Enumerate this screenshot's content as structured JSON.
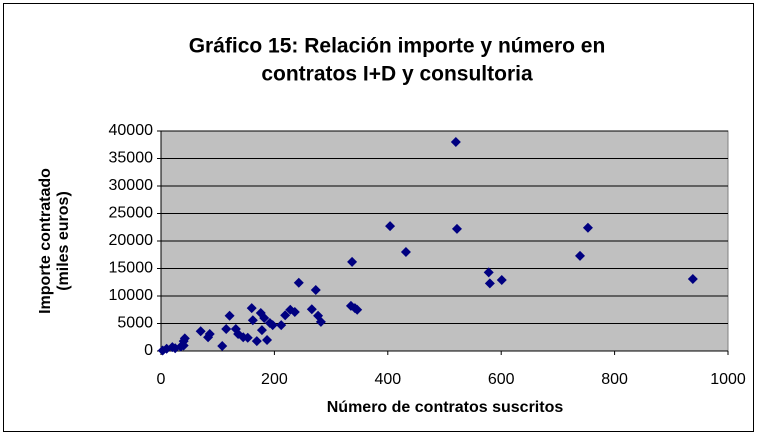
{
  "chart_data": {
    "type": "scatter",
    "title": [
      "Gráfico 15: Relación importe y número en",
      "contratos I+D y consultoria"
    ],
    "xlabel": "Número de contratos suscritos",
    "ylabel": [
      "Importe contratado",
      "(miles euros)"
    ],
    "x": [
      3,
      10,
      20,
      25,
      35,
      40,
      40,
      42,
      70,
      83,
      86,
      108,
      115,
      121,
      132,
      136,
      145,
      153,
      160,
      162,
      169,
      176,
      178,
      182,
      187,
      192,
      197,
      212,
      219,
      228,
      236,
      243,
      266,
      273,
      277,
      282,
      335,
      337,
      342,
      346,
      404,
      432,
      520,
      522,
      578,
      580,
      601,
      739,
      753,
      938
    ],
    "series": [
      {
        "name": "Importe",
        "color": "#000080",
        "values": [
          100,
          400,
          700,
          500,
          800,
          1800,
          1000,
          2300,
          3600,
          2500,
          3100,
          900,
          4000,
          6400,
          4000,
          3100,
          2500,
          2400,
          7800,
          5600,
          1800,
          6900,
          3800,
          6000,
          2000,
          5100,
          4700,
          4700,
          6500,
          7500,
          7100,
          12400,
          7600,
          11100,
          6400,
          5300,
          8200,
          16200,
          7800,
          7500,
          22700,
          18000,
          38000,
          22200,
          14300,
          12300,
          12900,
          17300,
          22400,
          13100
        ]
      }
    ],
    "xlim": [
      0,
      1000
    ],
    "xticks": [
      0,
      200,
      400,
      600,
      800,
      1000
    ],
    "ylim": [
      0,
      40000
    ],
    "yticks": [
      0,
      5000,
      10000,
      15000,
      20000,
      25000,
      30000,
      35000,
      40000
    ],
    "grid": true,
    "plot_background": "#c0c0c0"
  }
}
